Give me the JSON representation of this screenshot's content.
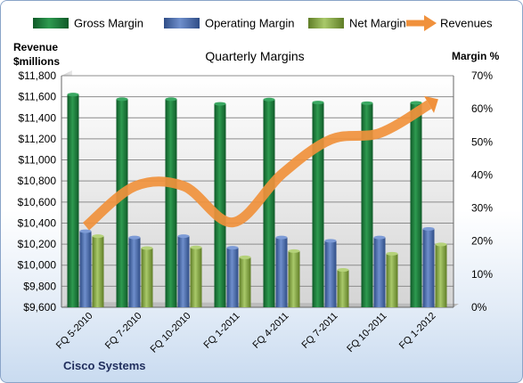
{
  "chart_data": {
    "type": "bar",
    "title": "Quarterly Margins",
    "y_left_label_line1": "Revenue",
    "y_left_label_line2": "$millions",
    "y_right_label": "Margin %",
    "company": "Cisco Systems",
    "categories": [
      "FQ 5-2010",
      "FQ 7-2010",
      "FQ 10-2010",
      "FQ 1-2011",
      "FQ 4-2011",
      "FQ 7-2011",
      "FQ 10-2011",
      "FQ 1-2012"
    ],
    "y_left_ticks": [
      "$9,600",
      "$9,800",
      "$10,000",
      "$10,200",
      "$10,400",
      "$10,600",
      "$10,800",
      "$11,000",
      "$11,200",
      "$11,400",
      "$11,600",
      "$11,800"
    ],
    "y_right_ticks": [
      "0%",
      "10%",
      "20%",
      "30%",
      "40%",
      "50%",
      "60%",
      "70%"
    ],
    "ylim_left": [
      9600,
      11800
    ],
    "ylim_right": [
      0,
      70
    ],
    "series": [
      {
        "name": "Gross Margin",
        "axis": "right",
        "color": "#1e7a3c",
        "values": [
          64.3,
          62.9,
          62.9,
          61.5,
          62.8,
          61.9,
          61.7,
          61.8
        ]
      },
      {
        "name": "Operating Margin",
        "axis": "right",
        "color": "#4f6fae",
        "values": [
          23.0,
          21.1,
          21.5,
          18.0,
          21.1,
          20.1,
          21.1,
          23.7
        ]
      },
      {
        "name": "Net Margin",
        "axis": "right",
        "color": "#8fb04a",
        "values": [
          21.5,
          17.9,
          18.1,
          15.1,
          17.0,
          11.3,
          16.2,
          19.0
        ]
      },
      {
        "name": "Revenues",
        "axis": "left",
        "color": "#f0913c",
        "values": [
          10368,
          10750,
          10750,
          10407,
          10866,
          11195,
          11256,
          11526
        ]
      }
    ],
    "legend": [
      "Gross Margin",
      "Operating Margin",
      "Net Margin",
      "Revenues"
    ],
    "legend_position": "top",
    "grid": true
  }
}
